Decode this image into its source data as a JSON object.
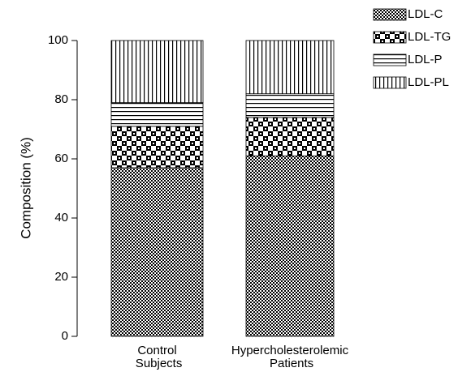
{
  "chart_data": {
    "type": "stacked_bar",
    "y_label": "Composition (%)",
    "categories": [
      "Control Subjects",
      "Hypercholesterolemic Patients"
    ],
    "series": [
      {
        "name": "LDL-C",
        "color": "#000000",
        "values": [
          57,
          61
        ]
      },
      {
        "name": "LDL-TG",
        "color": "#000000",
        "values": [
          14,
          13
        ]
      },
      {
        "name": "LDL-P",
        "color": "#000000",
        "values": [
          8,
          8
        ]
      },
      {
        "name": "LDL-PL",
        "color": "#000000",
        "values": [
          21,
          18
        ]
      }
    ],
    "ylim": [
      0,
      100
    ],
    "yticks": [
      0,
      20,
      40,
      60,
      80,
      100
    ],
    "grid": false
  }
}
